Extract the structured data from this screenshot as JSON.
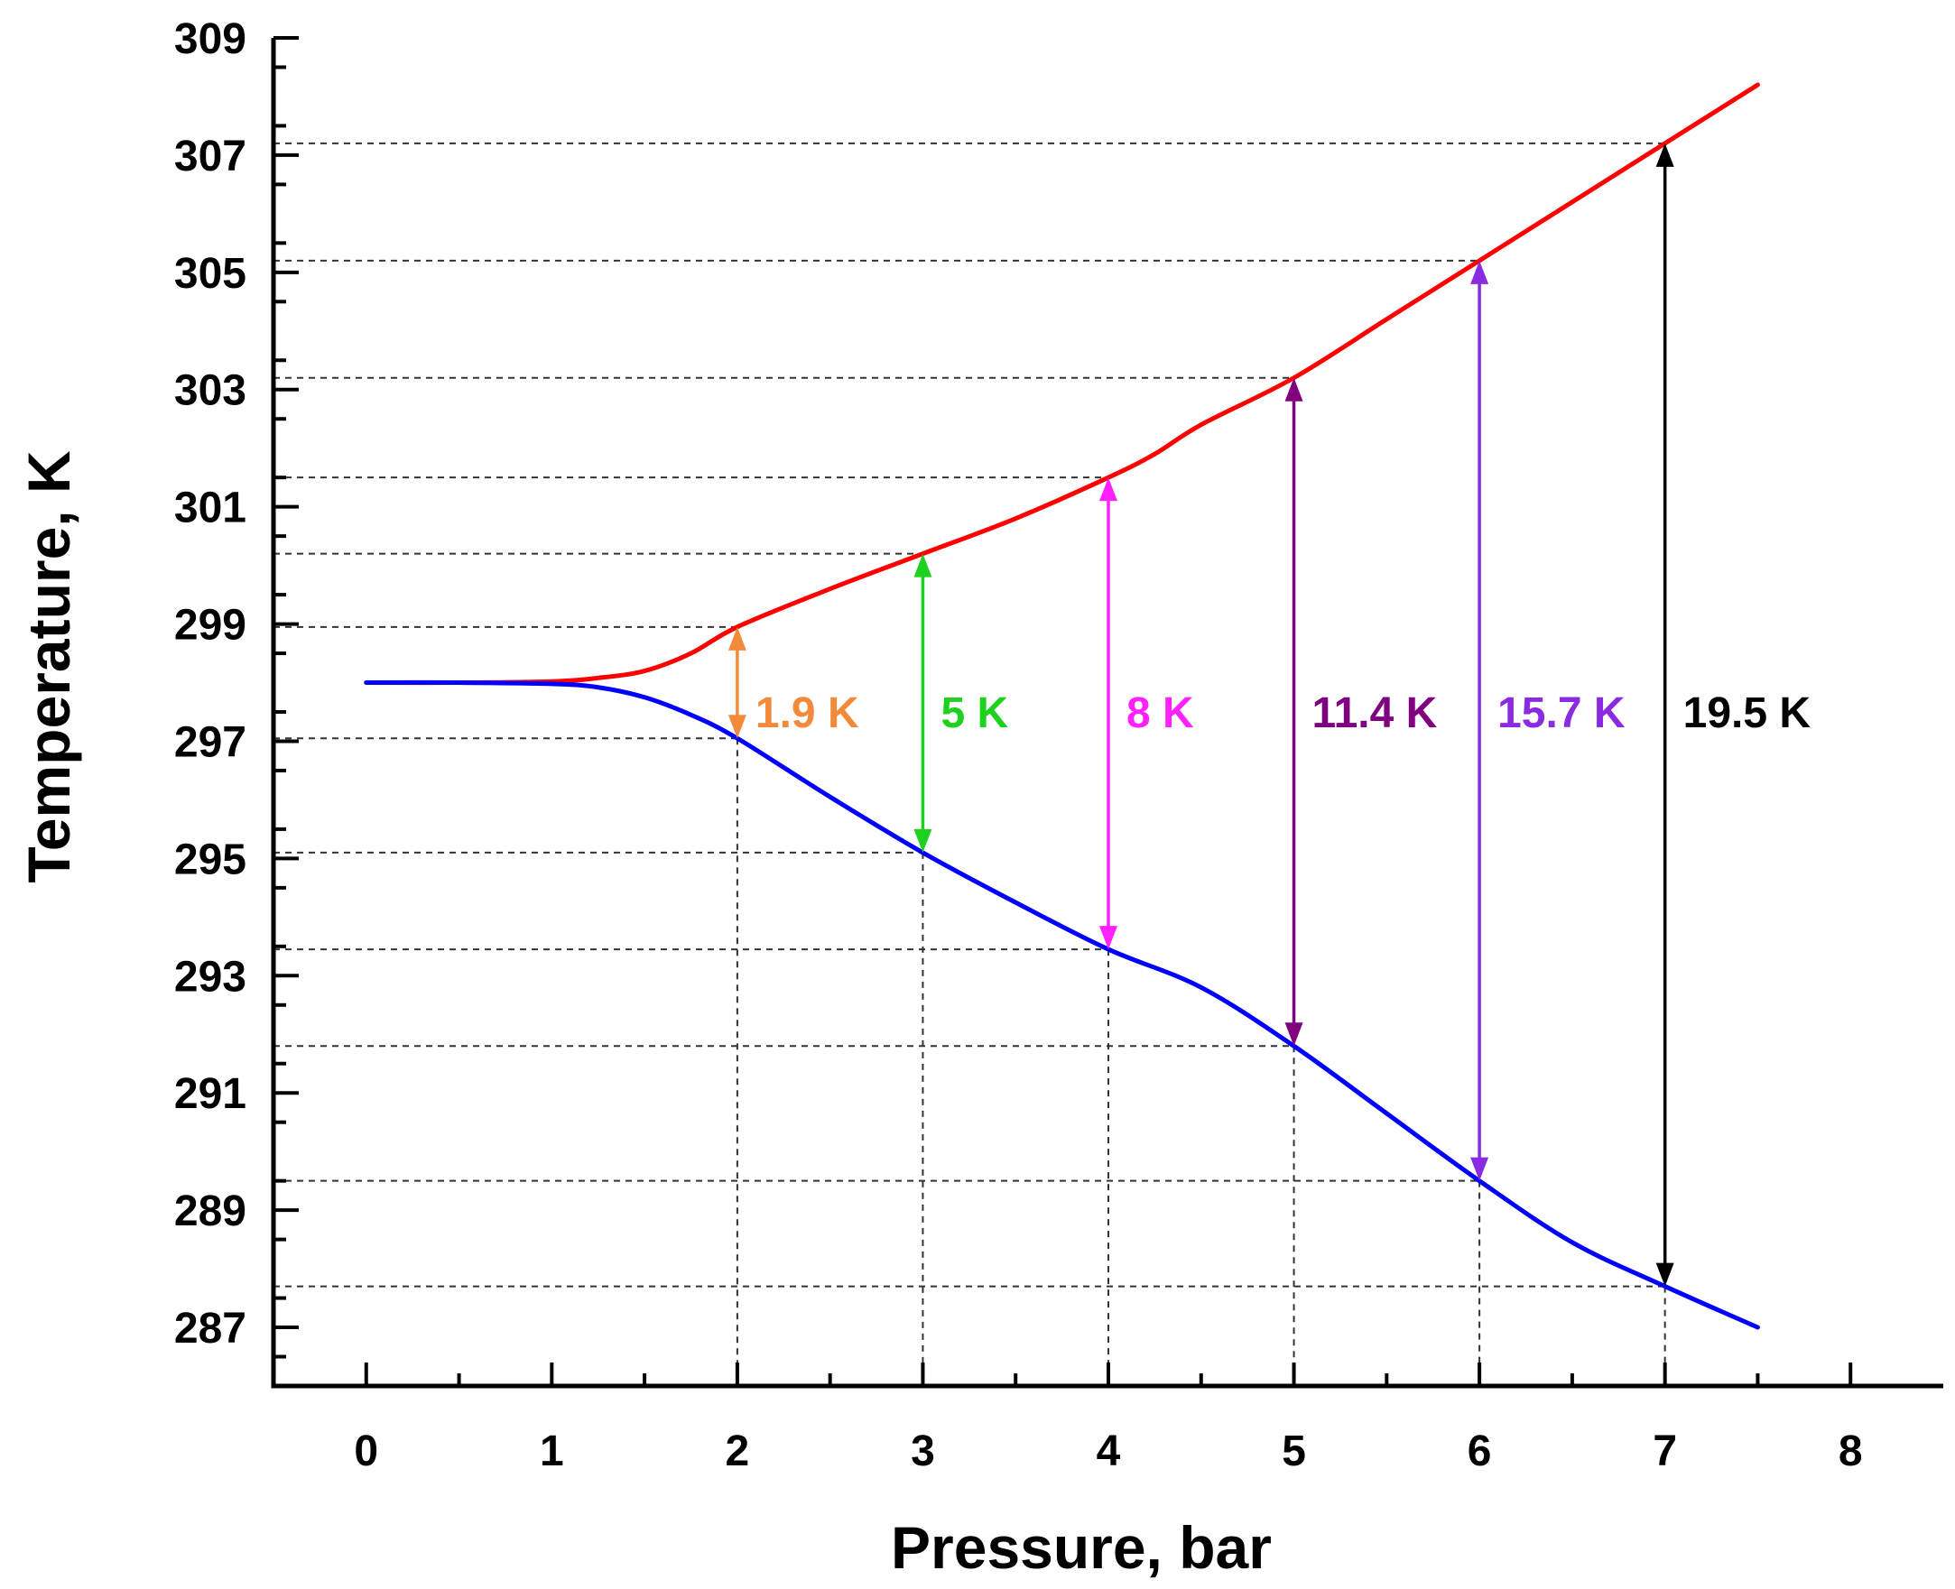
{
  "chart_data": {
    "type": "line",
    "title": "",
    "xlabel": "Pressure, bar",
    "ylabel": "Temperature, K",
    "xlim": [
      -0.5,
      8.5
    ],
    "ylim": [
      286,
      309
    ],
    "xticks": [
      0,
      1,
      2,
      3,
      4,
      5,
      6,
      7,
      8
    ],
    "yticks": [
      287,
      289,
      291,
      293,
      295,
      297,
      299,
      301,
      303,
      305,
      307,
      309
    ],
    "grid": false,
    "series": [
      {
        "name": "upper",
        "color": "#ff0000",
        "x": [
          0,
          0.5,
          1.0,
          1.25,
          1.5,
          1.75,
          2,
          2.5,
          3,
          3.5,
          4,
          4.25,
          4.5,
          5,
          5.5,
          6,
          6.5,
          7,
          7.5
        ],
        "y": [
          298.0,
          298.0,
          298.02,
          298.08,
          298.2,
          298.5,
          298.95,
          299.6,
          300.2,
          300.8,
          301.5,
          301.9,
          302.4,
          303.2,
          304.2,
          305.2,
          306.2,
          307.2,
          308.2
        ]
      },
      {
        "name": "lower",
        "color": "#0000ff",
        "x": [
          0,
          0.5,
          1.0,
          1.25,
          1.5,
          1.75,
          2,
          2.5,
          3,
          3.5,
          4,
          4.5,
          5,
          5.5,
          6,
          6.5,
          7,
          7.5
        ],
        "y": [
          298.0,
          298.0,
          297.98,
          297.92,
          297.75,
          297.45,
          297.05,
          296.05,
          295.1,
          294.25,
          293.45,
          292.8,
          291.8,
          290.65,
          289.5,
          288.45,
          287.7,
          287.0
        ]
      }
    ],
    "differences": [
      {
        "x": 2,
        "top": 298.95,
        "bottom": 297.05,
        "label": "1.9 K",
        "color": "#f28a3c"
      },
      {
        "x": 3,
        "top": 300.2,
        "bottom": 295.1,
        "label": "5 K",
        "color": "#1fd11f"
      },
      {
        "x": 4,
        "top": 301.5,
        "bottom": 293.45,
        "label": "8 K",
        "color": "#ff22ff"
      },
      {
        "x": 5,
        "top": 303.2,
        "bottom": 291.8,
        "label": "11.4 K",
        "color": "#800080"
      },
      {
        "x": 6,
        "top": 305.2,
        "bottom": 289.5,
        "label": "15.7 K",
        "color": "#8a2be2"
      },
      {
        "x": 7,
        "top": 307.2,
        "bottom": 287.7,
        "label": "19.5 K",
        "color": "#000000"
      }
    ]
  }
}
